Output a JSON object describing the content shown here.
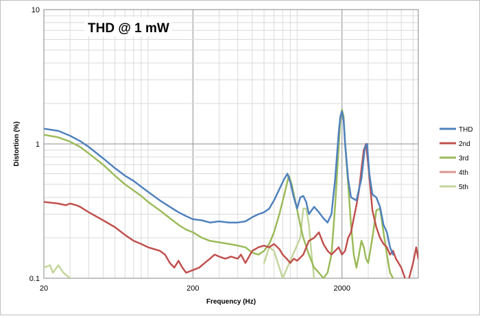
{
  "chart_data": {
    "type": "line",
    "title": "THD @ 1 mW",
    "xlabel": "Frequency (Hz)",
    "ylabel": "Distortion (%)",
    "x_scale": "log",
    "y_scale": "log",
    "xlim": [
      20,
      6500
    ],
    "ylim": [
      0.1,
      10
    ],
    "x_ticks": [
      "20",
      "200",
      "2000"
    ],
    "y_ticks": [
      "0.1",
      "1",
      "10"
    ],
    "grid": true,
    "legend": "right",
    "series": [
      {
        "name": "THD",
        "color": "#4f81bd",
        "points": [
          [
            20,
            1.3
          ],
          [
            25,
            1.25
          ],
          [
            30,
            1.15
          ],
          [
            35,
            1.05
          ],
          [
            40,
            0.95
          ],
          [
            50,
            0.78
          ],
          [
            60,
            0.66
          ],
          [
            70,
            0.58
          ],
          [
            80,
            0.53
          ],
          [
            90,
            0.48
          ],
          [
            100,
            0.44
          ],
          [
            120,
            0.38
          ],
          [
            140,
            0.34
          ],
          [
            160,
            0.31
          ],
          [
            180,
            0.29
          ],
          [
            200,
            0.275
          ],
          [
            230,
            0.27
          ],
          [
            260,
            0.26
          ],
          [
            300,
            0.265
          ],
          [
            350,
            0.26
          ],
          [
            400,
            0.26
          ],
          [
            450,
            0.265
          ],
          [
            500,
            0.285
          ],
          [
            550,
            0.3
          ],
          [
            600,
            0.31
          ],
          [
            650,
            0.33
          ],
          [
            700,
            0.38
          ],
          [
            760,
            0.46
          ],
          [
            820,
            0.55
          ],
          [
            860,
            0.6
          ],
          [
            900,
            0.52
          ],
          [
            950,
            0.4
          ],
          [
            1000,
            0.33
          ],
          [
            1050,
            0.4
          ],
          [
            1100,
            0.41
          ],
          [
            1150,
            0.37
          ],
          [
            1200,
            0.3
          ],
          [
            1300,
            0.34
          ],
          [
            1400,
            0.31
          ],
          [
            1500,
            0.28
          ],
          [
            1600,
            0.26
          ],
          [
            1700,
            0.3
          ],
          [
            1800,
            0.55
          ],
          [
            1900,
            1.2
          ],
          [
            1950,
            1.6
          ],
          [
            2000,
            1.75
          ],
          [
            2050,
            1.5
          ],
          [
            2100,
            1.0
          ],
          [
            2200,
            0.55
          ],
          [
            2300,
            0.4
          ],
          [
            2500,
            0.38
          ],
          [
            2700,
            0.55
          ],
          [
            2850,
            0.95
          ],
          [
            2950,
            1.0
          ],
          [
            3050,
            0.6
          ],
          [
            3200,
            0.42
          ],
          [
            3400,
            0.4
          ],
          [
            3600,
            0.34
          ],
          [
            3800,
            0.25
          ],
          [
            4000,
            0.22
          ],
          [
            4200,
            0.17
          ],
          [
            4400,
            0.15
          ]
        ]
      },
      {
        "name": "2nd",
        "color": "#c0504d",
        "points": [
          [
            20,
            0.37
          ],
          [
            25,
            0.36
          ],
          [
            28,
            0.35
          ],
          [
            30,
            0.36
          ],
          [
            33,
            0.35
          ],
          [
            35,
            0.34
          ],
          [
            40,
            0.31
          ],
          [
            50,
            0.27
          ],
          [
            60,
            0.24
          ],
          [
            70,
            0.21
          ],
          [
            80,
            0.19
          ],
          [
            90,
            0.18
          ],
          [
            100,
            0.17
          ],
          [
            120,
            0.16
          ],
          [
            130,
            0.15
          ],
          [
            140,
            0.13
          ],
          [
            150,
            0.12
          ],
          [
            160,
            0.135
          ],
          [
            170,
            0.12
          ],
          [
            180,
            0.11
          ],
          [
            200,
            0.115
          ],
          [
            220,
            0.12
          ],
          [
            240,
            0.13
          ],
          [
            260,
            0.14
          ],
          [
            280,
            0.15
          ],
          [
            300,
            0.145
          ],
          [
            330,
            0.14
          ],
          [
            360,
            0.145
          ],
          [
            400,
            0.14
          ],
          [
            420,
            0.15
          ],
          [
            450,
            0.13
          ],
          [
            500,
            0.16
          ],
          [
            550,
            0.17
          ],
          [
            600,
            0.175
          ],
          [
            650,
            0.17
          ],
          [
            700,
            0.18
          ],
          [
            760,
            0.165
          ],
          [
            800,
            0.15
          ],
          [
            850,
            0.14
          ],
          [
            900,
            0.13
          ],
          [
            950,
            0.14
          ],
          [
            1000,
            0.135
          ],
          [
            1100,
            0.15
          ],
          [
            1200,
            0.19
          ],
          [
            1300,
            0.2
          ],
          [
            1400,
            0.22
          ],
          [
            1500,
            0.18
          ],
          [
            1600,
            0.16
          ],
          [
            1700,
            0.15
          ],
          [
            1800,
            0.16
          ],
          [
            1900,
            0.17
          ],
          [
            2000,
            0.15
          ],
          [
            2100,
            0.16
          ],
          [
            2200,
            0.2
          ],
          [
            2300,
            0.22
          ],
          [
            2400,
            0.28
          ],
          [
            2500,
            0.35
          ],
          [
            2600,
            0.45
          ],
          [
            2700,
            0.65
          ],
          [
            2800,
            0.9
          ],
          [
            2900,
            1.0
          ],
          [
            3000,
            0.7
          ],
          [
            3200,
            0.32
          ],
          [
            3400,
            0.24
          ],
          [
            3600,
            0.2
          ],
          [
            3800,
            0.18
          ],
          [
            4000,
            0.17
          ],
          [
            4200,
            0.15
          ],
          [
            4400,
            0.16
          ],
          [
            4600,
            0.14
          ],
          [
            5000,
            0.12
          ],
          [
            5300,
            0.1
          ],
          [
            5500,
            0.09
          ],
          [
            6000,
            0.13
          ],
          [
            6300,
            0.17
          ],
          [
            6500,
            0.14
          ]
        ]
      },
      {
        "name": "3rd",
        "color": "#9bbb59",
        "points": [
          [
            20,
            1.17
          ],
          [
            25,
            1.12
          ],
          [
            30,
            1.04
          ],
          [
            35,
            0.95
          ],
          [
            40,
            0.85
          ],
          [
            50,
            0.7
          ],
          [
            60,
            0.58
          ],
          [
            70,
            0.5
          ],
          [
            80,
            0.45
          ],
          [
            90,
            0.41
          ],
          [
            100,
            0.37
          ],
          [
            120,
            0.32
          ],
          [
            140,
            0.28
          ],
          [
            160,
            0.25
          ],
          [
            180,
            0.23
          ],
          [
            200,
            0.22
          ],
          [
            230,
            0.2
          ],
          [
            260,
            0.19
          ],
          [
            300,
            0.185
          ],
          [
            350,
            0.18
          ],
          [
            400,
            0.175
          ],
          [
            450,
            0.17
          ],
          [
            500,
            0.155
          ],
          [
            550,
            0.15
          ],
          [
            600,
            0.16
          ],
          [
            650,
            0.18
          ],
          [
            700,
            0.22
          ],
          [
            760,
            0.3
          ],
          [
            820,
            0.42
          ],
          [
            880,
            0.58
          ],
          [
            920,
            0.5
          ],
          [
            980,
            0.36
          ],
          [
            1050,
            0.25
          ],
          [
            1100,
            0.2
          ],
          [
            1200,
            0.15
          ],
          [
            1300,
            0.12
          ],
          [
            1400,
            0.11
          ],
          [
            1500,
            0.1
          ],
          [
            1600,
            0.11
          ],
          [
            1700,
            0.15
          ],
          [
            1800,
            0.35
          ],
          [
            1900,
            0.95
          ],
          [
            1950,
            1.5
          ],
          [
            2000,
            1.8
          ],
          [
            2050,
            1.6
          ],
          [
            2100,
            1.0
          ],
          [
            2200,
            0.5
          ],
          [
            2300,
            0.25
          ],
          [
            2400,
            0.15
          ],
          [
            2500,
            0.12
          ],
          [
            2600,
            0.15
          ],
          [
            2700,
            0.19
          ],
          [
            2800,
            0.17
          ],
          [
            2900,
            0.14
          ],
          [
            3000,
            0.13
          ],
          [
            3200,
            0.2
          ],
          [
            3400,
            0.32
          ],
          [
            3600,
            0.33
          ],
          [
            3800,
            0.22
          ],
          [
            4000,
            0.15
          ],
          [
            4200,
            0.11
          ],
          [
            4400,
            0.1
          ]
        ]
      },
      {
        "name": "4th",
        "color": "#d99694",
        "points": []
      },
      {
        "name": "5th",
        "color": "#c3d69b",
        "points": [
          [
            20,
            0.12
          ],
          [
            22,
            0.125
          ],
          [
            23,
            0.11
          ],
          [
            25,
            0.125
          ],
          [
            27,
            0.11
          ],
          [
            30,
            0.1
          ],
          [
            600,
            0.13
          ],
          [
            650,
            0.17
          ],
          [
            700,
            0.16
          ],
          [
            760,
            0.12
          ],
          [
            800,
            0.1
          ],
          [
            1050,
            0.2
          ],
          [
            1100,
            0.33
          ],
          [
            1150,
            0.33
          ],
          [
            1200,
            0.25
          ],
          [
            1250,
            0.15
          ],
          [
            1300,
            0.1
          ]
        ]
      }
    ]
  }
}
